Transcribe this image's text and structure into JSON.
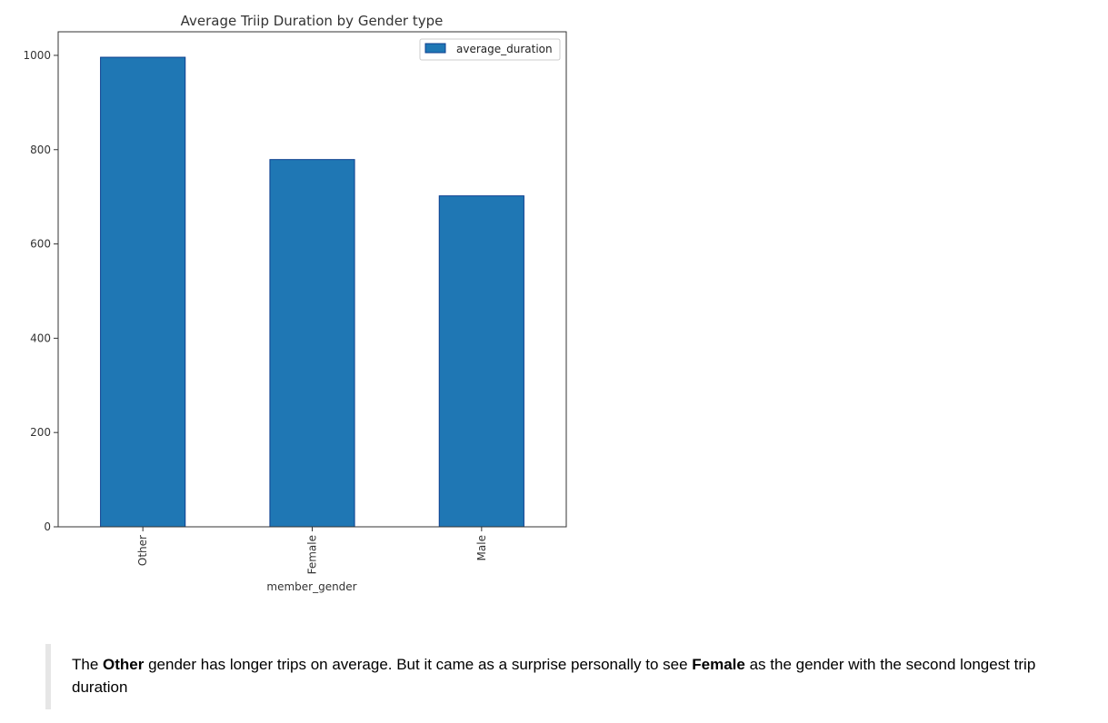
{
  "chart_data": {
    "type": "bar",
    "title": "Average Triip Duration by Gender type",
    "xlabel": "member_gender",
    "ylabel": "",
    "categories": [
      "Other",
      "Female",
      "Male"
    ],
    "series": [
      {
        "name": "average_duration",
        "values": [
          996,
          779,
          702
        ]
      }
    ],
    "ylim": [
      0,
      1050
    ],
    "yticks": [
      0,
      200,
      400,
      600,
      800,
      1000
    ],
    "grid": false,
    "legend": "top-right",
    "bar_color": "#1f77b4",
    "bar_edge_color": "#0d3f8f"
  },
  "note": {
    "part1": "The ",
    "bold1": "Other",
    "part2": " gender has longer trips on average. But it came as a surprise personally to see ",
    "bold2": "Female",
    "part3": " as the gender with the second longest trip duration"
  }
}
